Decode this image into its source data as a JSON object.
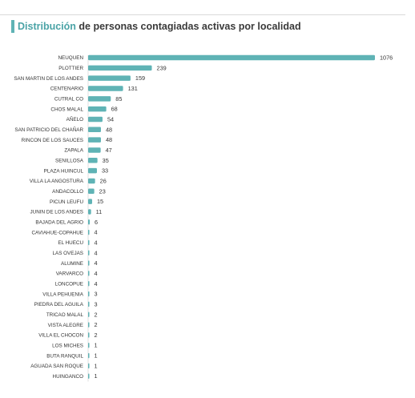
{
  "title": {
    "highlight": "Distribución",
    "rest": " de personas contagiadas activas por localidad"
  },
  "colors": {
    "bar": "#5fb3b5",
    "accent": "#4aa3a6",
    "text": "#333333"
  },
  "chart_data": {
    "type": "bar",
    "orientation": "horizontal",
    "title": "Distribución de personas contagiadas activas por localidad",
    "categories": [
      "NEUQUEN",
      "PLOTTIER",
      "SAN MARTIN DE LOS ANDES",
      "CENTENARIO",
      "CUTRAL CO",
      "CHOS MALAL",
      "AÑELO",
      "SAN PATRICIO DEL CHAÑAR",
      "RINCON DE LOS SAUCES",
      "ZAPALA",
      "SENILLOSA",
      "PLAZA HUINCUL",
      "VILLA LA ANGOSTURA",
      "ANDACOLLO",
      "PICUN LEUFU",
      "JUNIN DE LOS ANDES",
      "BAJADA DEL AGRIO",
      "CAVIAHUE-COPAHUE",
      "EL HUECU",
      "LAS OVEJAS",
      "ALUMINE",
      "VARVARCO",
      "LONCOPUE",
      "VILLA PEHUENIA",
      "PIEDRA DEL AGUILA",
      "TRICAO MALAL",
      "VISTA ALEGRE",
      "VILLA EL CHOCON",
      "LOS MICHES",
      "BUTA RANQUIL",
      "AGUADA SAN ROQUE",
      "HUINGANCO"
    ],
    "values": [
      1076,
      239,
      159,
      131,
      85,
      68,
      54,
      48,
      48,
      47,
      35,
      33,
      26,
      23,
      15,
      11,
      6,
      4,
      4,
      4,
      4,
      4,
      4,
      3,
      3,
      2,
      2,
      2,
      1,
      1,
      1,
      1
    ],
    "xlim": [
      0,
      1076
    ],
    "grid": false,
    "legend": "none"
  }
}
